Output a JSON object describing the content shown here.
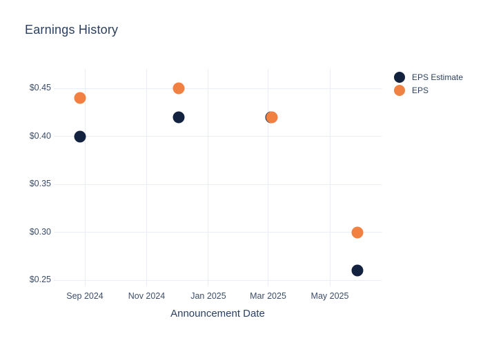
{
  "title": "Earnings History",
  "x_axis": {
    "label": "Announcement Date",
    "ticks": [
      {
        "label": "Sep 2024",
        "date": "2024-09-01"
      },
      {
        "label": "Nov 2024",
        "date": "2024-11-01"
      },
      {
        "label": "Jan 2025",
        "date": "2025-01-01"
      },
      {
        "label": "Mar 2025",
        "date": "2025-03-01"
      },
      {
        "label": "May 2025",
        "date": "2025-05-01"
      }
    ]
  },
  "y_axis": {
    "ticks": [
      {
        "label": "$0.25",
        "value": 0.25
      },
      {
        "label": "$0.30",
        "value": 0.3
      },
      {
        "label": "$0.35",
        "value": 0.35
      },
      {
        "label": "$0.40",
        "value": 0.4
      },
      {
        "label": "$0.45",
        "value": 0.45
      }
    ]
  },
  "legend": {
    "items": [
      {
        "label": "EPS Estimate",
        "color": "#13223e"
      },
      {
        "label": "EPS",
        "color": "#f08142"
      }
    ]
  },
  "colors": {
    "eps_estimate": "#13223e",
    "eps": "#f08142",
    "grid": "#e9eef6",
    "title_text": "#2a3f5f",
    "tick_text": "#3c4d68",
    "background": "#ffffff"
  },
  "chart_data": {
    "type": "scatter",
    "title": "Earnings History",
    "xlabel": "Announcement Date",
    "ylabel": "",
    "x_tick_labels": [
      "Sep 2024",
      "Nov 2024",
      "Jan 2025",
      "Mar 2025",
      "May 2025"
    ],
    "y_tick_labels": [
      "$0.25",
      "$0.30",
      "$0.35",
      "$0.40",
      "$0.45"
    ],
    "ylim": [
      0.243,
      0.468
    ],
    "grid": true,
    "legend_position": "top-right",
    "marker_size_px": 17,
    "series": [
      {
        "name": "EPS Estimate",
        "color": "#13223e",
        "points": [
          {
            "x": "2024-08-27",
            "y": 0.4
          },
          {
            "x": "2024-12-03",
            "y": 0.42
          },
          {
            "x": "2025-03-04",
            "y": 0.42
          },
          {
            "x": "2025-05-28",
            "y": 0.26
          }
        ]
      },
      {
        "name": "EPS",
        "color": "#f08142",
        "points": [
          {
            "x": "2024-08-27",
            "y": 0.44
          },
          {
            "x": "2024-12-03",
            "y": 0.45
          },
          {
            "x": "2025-03-05",
            "y": 0.42
          },
          {
            "x": "2025-05-28",
            "y": 0.3
          }
        ]
      }
    ]
  }
}
